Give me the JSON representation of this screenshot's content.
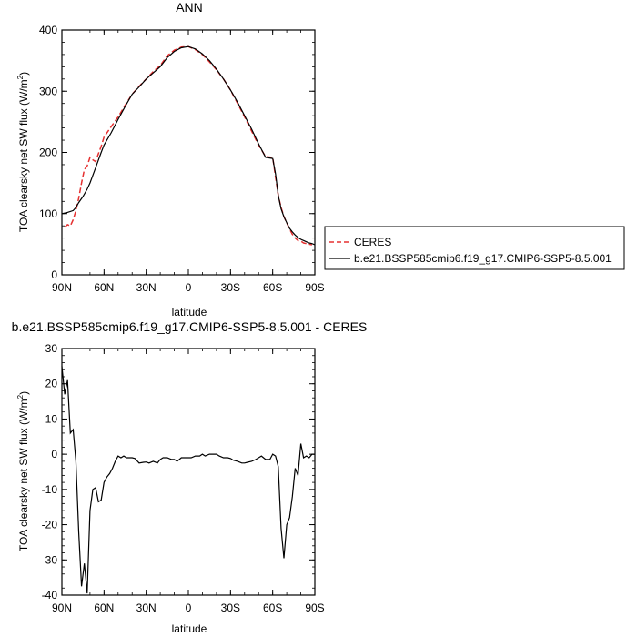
{
  "colors": {
    "ceres": "#e53030",
    "model": "#000000"
  },
  "chart_data": [
    {
      "type": "line",
      "title": "ANN",
      "xlabel": "latitude",
      "ylabel": "TOA clearsky net SW flux",
      "ylabel_unit": "(W/m",
      "ylabel_sup": "2",
      "ylabel_close": ")",
      "xlim": [
        90,
        -90
      ],
      "ylim": [
        0,
        400
      ],
      "x_ticks": [
        {
          "value": 90,
          "label": "90N"
        },
        {
          "value": 60,
          "label": "60N"
        },
        {
          "value": 30,
          "label": "30N"
        },
        {
          "value": 0,
          "label": "0"
        },
        {
          "value": -30,
          "label": "30S"
        },
        {
          "value": -60,
          "label": "60S"
        },
        {
          "value": -90,
          "label": "90S"
        }
      ],
      "y_ticks": [
        {
          "value": 0,
          "label": "0"
        },
        {
          "value": 100,
          "label": "100"
        },
        {
          "value": 200,
          "label": "200"
        },
        {
          "value": 300,
          "label": "300"
        },
        {
          "value": 400,
          "label": "400"
        }
      ],
      "legend_position": "right",
      "series": [
        {
          "name": "CERES",
          "style": "dashed",
          "x": [
            88,
            86,
            84,
            82,
            80,
            78,
            76,
            74,
            72,
            70,
            68,
            66,
            64,
            62,
            60,
            55,
            50,
            45,
            40,
            35,
            30,
            25,
            20,
            15,
            10,
            5,
            0,
            -5,
            -10,
            -15,
            -20,
            -25,
            -30,
            -35,
            -40,
            -45,
            -50,
            -55,
            -60,
            -62,
            -64,
            -66,
            -68,
            -70,
            -72,
            -74,
            -76,
            -78,
            -80,
            -82,
            -84,
            -86,
            -88
          ],
          "y": [
            78,
            82,
            80,
            90,
            105,
            125,
            150,
            172,
            178,
            192,
            188,
            185,
            198,
            210,
            225,
            242,
            258,
            277,
            295,
            308,
            320,
            332,
            342,
            358,
            367,
            372,
            373,
            368,
            360,
            348,
            335,
            320,
            302,
            280,
            258,
            235,
            212,
            193,
            192,
            160,
            130,
            110,
            95,
            85,
            75,
            66,
            60,
            56,
            55,
            52,
            51,
            50,
            49
          ]
        },
        {
          "name": "b.e21.BSSP585cmip6.f19_g17.CMIP6-SSP5-8.5.001",
          "style": "solid",
          "x": [
            90,
            86,
            82,
            80,
            78,
            75,
            72,
            70,
            66,
            62,
            60,
            55,
            50,
            45,
            40,
            35,
            30,
            25,
            20,
            15,
            10,
            5,
            0,
            -5,
            -10,
            -15,
            -20,
            -25,
            -30,
            -35,
            -40,
            -45,
            -50,
            -55,
            -60,
            -62,
            -64,
            -66,
            -68,
            -70,
            -72,
            -74,
            -76,
            -78,
            -80,
            -82,
            -84,
            -86,
            -88,
            -90
          ],
          "y": [
            100,
            102,
            105,
            110,
            118,
            128,
            140,
            150,
            175,
            200,
            212,
            232,
            254,
            275,
            295,
            307,
            320,
            330,
            340,
            355,
            365,
            371,
            373,
            369,
            361,
            350,
            336,
            320,
            302,
            282,
            260,
            238,
            214,
            192,
            190,
            165,
            130,
            108,
            95,
            85,
            76,
            70,
            65,
            61,
            58,
            56,
            54,
            52,
            51,
            49
          ]
        }
      ]
    },
    {
      "type": "line",
      "title": "b.e21.BSSP585cmip6.f19_g17.CMIP6-SSP5-8.5.001 - CERES",
      "xlabel": "latitude",
      "ylabel": "TOA clearsky net SW flux",
      "ylabel_unit": "(W/m",
      "ylabel_sup": "2",
      "ylabel_close": ")",
      "xlim": [
        90,
        -90
      ],
      "ylim": [
        -40,
        30
      ],
      "x_ticks": [
        {
          "value": 90,
          "label": "90N"
        },
        {
          "value": 60,
          "label": "60N"
        },
        {
          "value": 30,
          "label": "30N"
        },
        {
          "value": 0,
          "label": "0"
        },
        {
          "value": -30,
          "label": "30S"
        },
        {
          "value": -60,
          "label": "60S"
        },
        {
          "value": -90,
          "label": "90S"
        }
      ],
      "y_ticks": [
        {
          "value": -40,
          "label": "-40"
        },
        {
          "value": -30,
          "label": "-30"
        },
        {
          "value": -20,
          "label": "-20"
        },
        {
          "value": -10,
          "label": "-10"
        },
        {
          "value": 0,
          "label": "0"
        },
        {
          "value": 10,
          "label": "10"
        },
        {
          "value": 20,
          "label": "20"
        },
        {
          "value": 30,
          "label": "30"
        }
      ],
      "series": [
        {
          "name": "",
          "style": "solid",
          "x": [
            90,
            88,
            86,
            84,
            82,
            80,
            78,
            76,
            74,
            72,
            70,
            68,
            66,
            64,
            62,
            60,
            58,
            56,
            54,
            52,
            50,
            48,
            46,
            44,
            42,
            40,
            38,
            35,
            32,
            30,
            28,
            25,
            22,
            20,
            18,
            15,
            12,
            10,
            8,
            5,
            2,
            0,
            -2,
            -5,
            -8,
            -10,
            -12,
            -15,
            -18,
            -20,
            -22,
            -25,
            -28,
            -30,
            -32,
            -35,
            -38,
            -40,
            -42,
            -45,
            -48,
            -50,
            -52,
            -55,
            -58,
            -60,
            -62,
            -64,
            -66,
            -68,
            -70,
            -72,
            -74,
            -76,
            -78,
            -80,
            -82,
            -84,
            -86,
            -88,
            -90
          ],
          "y": [
            25,
            17,
            21,
            6,
            7,
            -2,
            -22,
            -37.5,
            -31,
            -39.5,
            -16,
            -10,
            -9.5,
            -13.5,
            -13,
            -8,
            -6.5,
            -5.5,
            -4,
            -2,
            -0.5,
            -1,
            -0.5,
            -1,
            -1,
            -1,
            -1.2,
            -2.5,
            -2.3,
            -2.2,
            -2.5,
            -2,
            -2.5,
            -1.5,
            -1,
            -1,
            -1.5,
            -1.5,
            -2,
            -1,
            -1,
            -1,
            -1,
            -0.5,
            -0.5,
            0,
            -0.5,
            0,
            0,
            0,
            -0.5,
            -1,
            -1,
            -1.2,
            -1.7,
            -2,
            -2.5,
            -2.5,
            -2.3,
            -2,
            -1.5,
            -1,
            -0.5,
            -1.5,
            -1.5,
            0,
            -0.5,
            -3.5,
            -21,
            -29.5,
            -20,
            -18,
            -12,
            -4,
            -6,
            3,
            -1,
            -0.5,
            -1,
            0,
            0
          ]
        }
      ]
    }
  ]
}
